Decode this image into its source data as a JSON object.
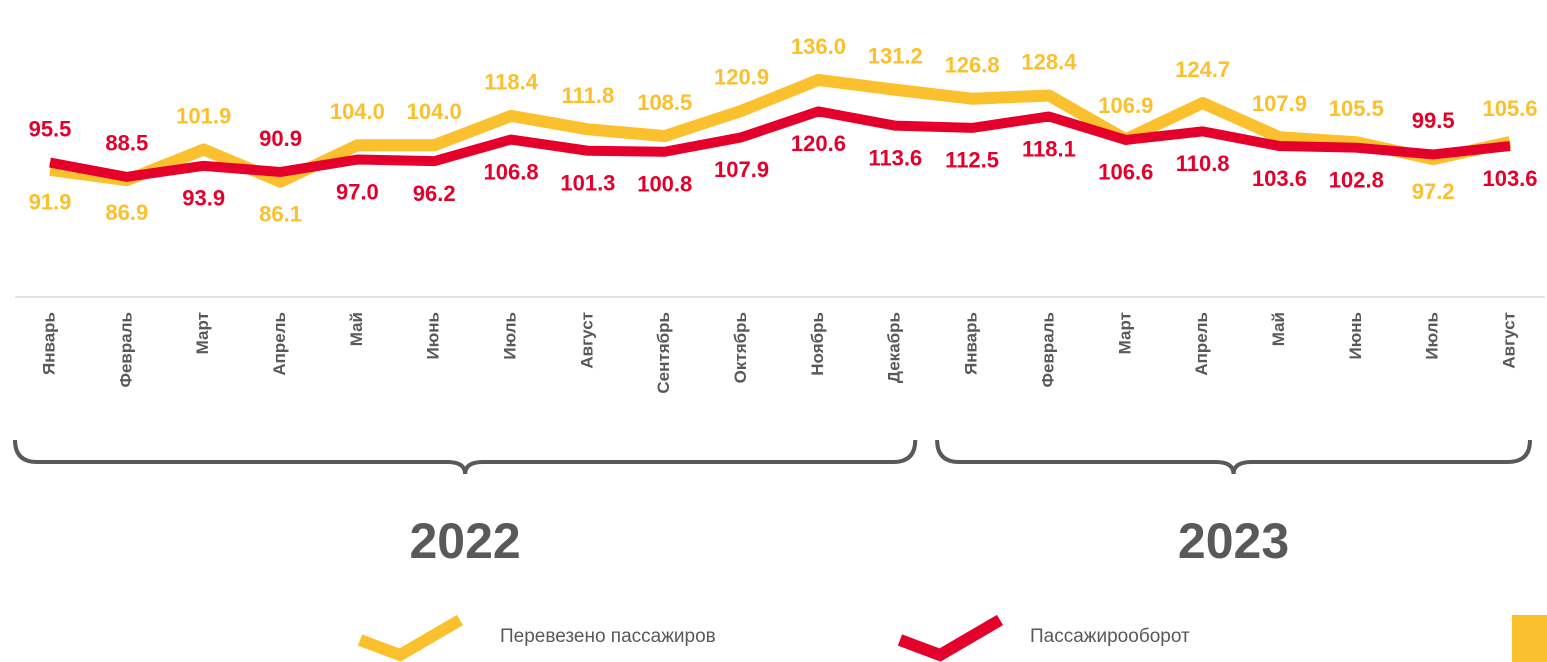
{
  "chart_data": {
    "type": "line",
    "categories": [
      "Январь",
      "Февраль",
      "Март",
      "Апрель",
      "Май",
      "Июнь",
      "Июль",
      "Август",
      "Сентябрь",
      "Октябрь",
      "Ноябрь",
      "Декабрь",
      "Январь",
      "Февраль",
      "Март",
      "Апрель",
      "Май",
      "Июнь",
      "Июль",
      "Август"
    ],
    "groups": [
      {
        "label": "2022",
        "from": 0,
        "to": 11
      },
      {
        "label": "2023",
        "from": 12,
        "to": 19
      }
    ],
    "series": [
      {
        "name": "Перевезено пассажиров",
        "color": "#fbc02d",
        "values": [
          91.9,
          86.9,
          101.9,
          86.1,
          104,
          104,
          118.4,
          111.8,
          108.5,
          120.9,
          136,
          131.2,
          126.8,
          128.4,
          106.9,
          124.7,
          107.9,
          105.5,
          97.2,
          105.6
        ],
        "value_labels": [
          "91.9",
          "86.9",
          "101.9",
          "86.1",
          "104.0",
          "104.0",
          "118.4",
          "111.8",
          "108.5",
          "120.9",
          "136.0",
          "131.2",
          "126.8",
          "128.4",
          "106.9",
          "124.7",
          "107.9",
          "105.5",
          "97.2",
          "105.6"
        ]
      },
      {
        "name": "Пассажирооборот",
        "color": "#e4002b",
        "values": [
          95.5,
          88.5,
          93.9,
          90.9,
          97,
          96.2,
          106.8,
          101.3,
          100.8,
          107.9,
          120.6,
          113.6,
          112.5,
          118.1,
          106.6,
          110.8,
          103.6,
          102.8,
          99.5,
          103.6
        ],
        "value_labels": [
          "95.5",
          "88.5",
          "93.9",
          "90.9",
          "97.0",
          "96.2",
          "106.8",
          "101.3",
          "100.8",
          "107.9",
          "120.6",
          "113.6",
          "112.5",
          "118.1",
          "106.6",
          "110.8",
          "103.6",
          "102.8",
          "99.5",
          "103.6"
        ]
      }
    ],
    "ylim": [
      60,
      150
    ]
  }
}
